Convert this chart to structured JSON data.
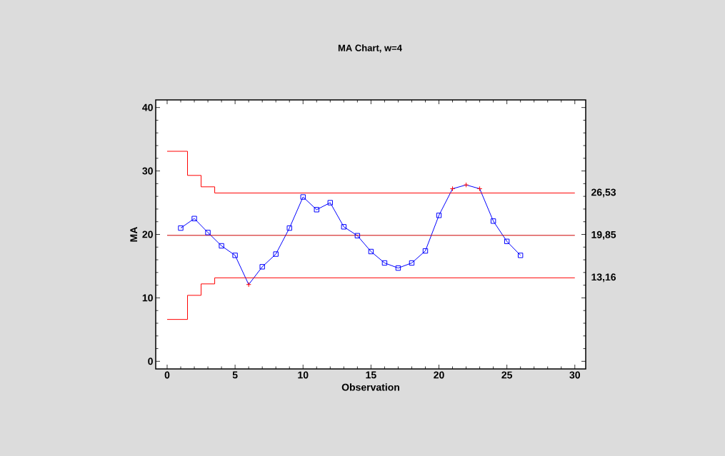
{
  "chart_data": {
    "type": "line",
    "title": "MA Chart, w=4",
    "xlabel": "Observation",
    "ylabel": "MA",
    "x": [
      1,
      2,
      3,
      4,
      5,
      6,
      7,
      8,
      9,
      10,
      11,
      12,
      13,
      14,
      15,
      16,
      17,
      18,
      19,
      20,
      21,
      22,
      23,
      24,
      25,
      26
    ],
    "series": [
      {
        "color": "#0000ff",
        "marker": "none",
        "values": [
          21.0,
          22.5,
          20.3,
          18.2,
          16.7,
          12.1,
          14.9,
          16.9,
          21.0,
          25.9,
          23.9,
          25.0,
          21.2,
          19.8,
          17.3,
          15.5,
          14.7,
          15.5,
          17.4,
          23.0,
          27.2,
          27.8,
          27.2,
          22.1,
          18.9,
          16.7
        ]
      },
      {
        "type": "scatter",
        "color": "#0000ff",
        "marker": "square",
        "values": [
          21.0,
          22.5,
          20.3,
          18.2,
          16.7,
          null,
          14.9,
          16.9,
          21.0,
          25.9,
          23.9,
          25.0,
          21.2,
          19.8,
          17.3,
          15.5,
          14.7,
          15.5,
          17.4,
          23.0,
          null,
          null,
          null,
          22.1,
          18.9,
          16.7
        ]
      },
      {
        "type": "scatter",
        "color": "#ff0000",
        "marker": "cross",
        "values": [
          null,
          null,
          null,
          null,
          null,
          12.1,
          null,
          null,
          null,
          null,
          null,
          null,
          null,
          null,
          null,
          null,
          null,
          null,
          null,
          null,
          27.2,
          27.8,
          27.2,
          null,
          null,
          null
        ]
      },
      {
        "type": "step",
        "color": "#ff0000",
        "x": [
          0,
          1.5,
          2.5,
          3.5,
          30
        ],
        "values": [
          33.1,
          29.3,
          27.5,
          26.53,
          26.53
        ]
      },
      {
        "color": "#cc0000",
        "marker": "none",
        "x": [
          0,
          30
        ],
        "values": [
          19.85,
          19.85
        ]
      },
      {
        "type": "step",
        "color": "#ff0000",
        "x": [
          0,
          1.5,
          2.5,
          3.5,
          30
        ],
        "values": [
          6.6,
          10.4,
          12.2,
          13.16,
          13.16
        ]
      }
    ],
    "annotations": [
      "26,53",
      "19,85",
      "13,16"
    ],
    "xlim": [
      -0.84,
      30.8
    ],
    "ylim": [
      -1.2,
      41.2
    ],
    "xticks": [
      0,
      5,
      10,
      15,
      20,
      25,
      30
    ],
    "yticks": [
      0,
      10,
      20,
      30,
      40
    ]
  }
}
